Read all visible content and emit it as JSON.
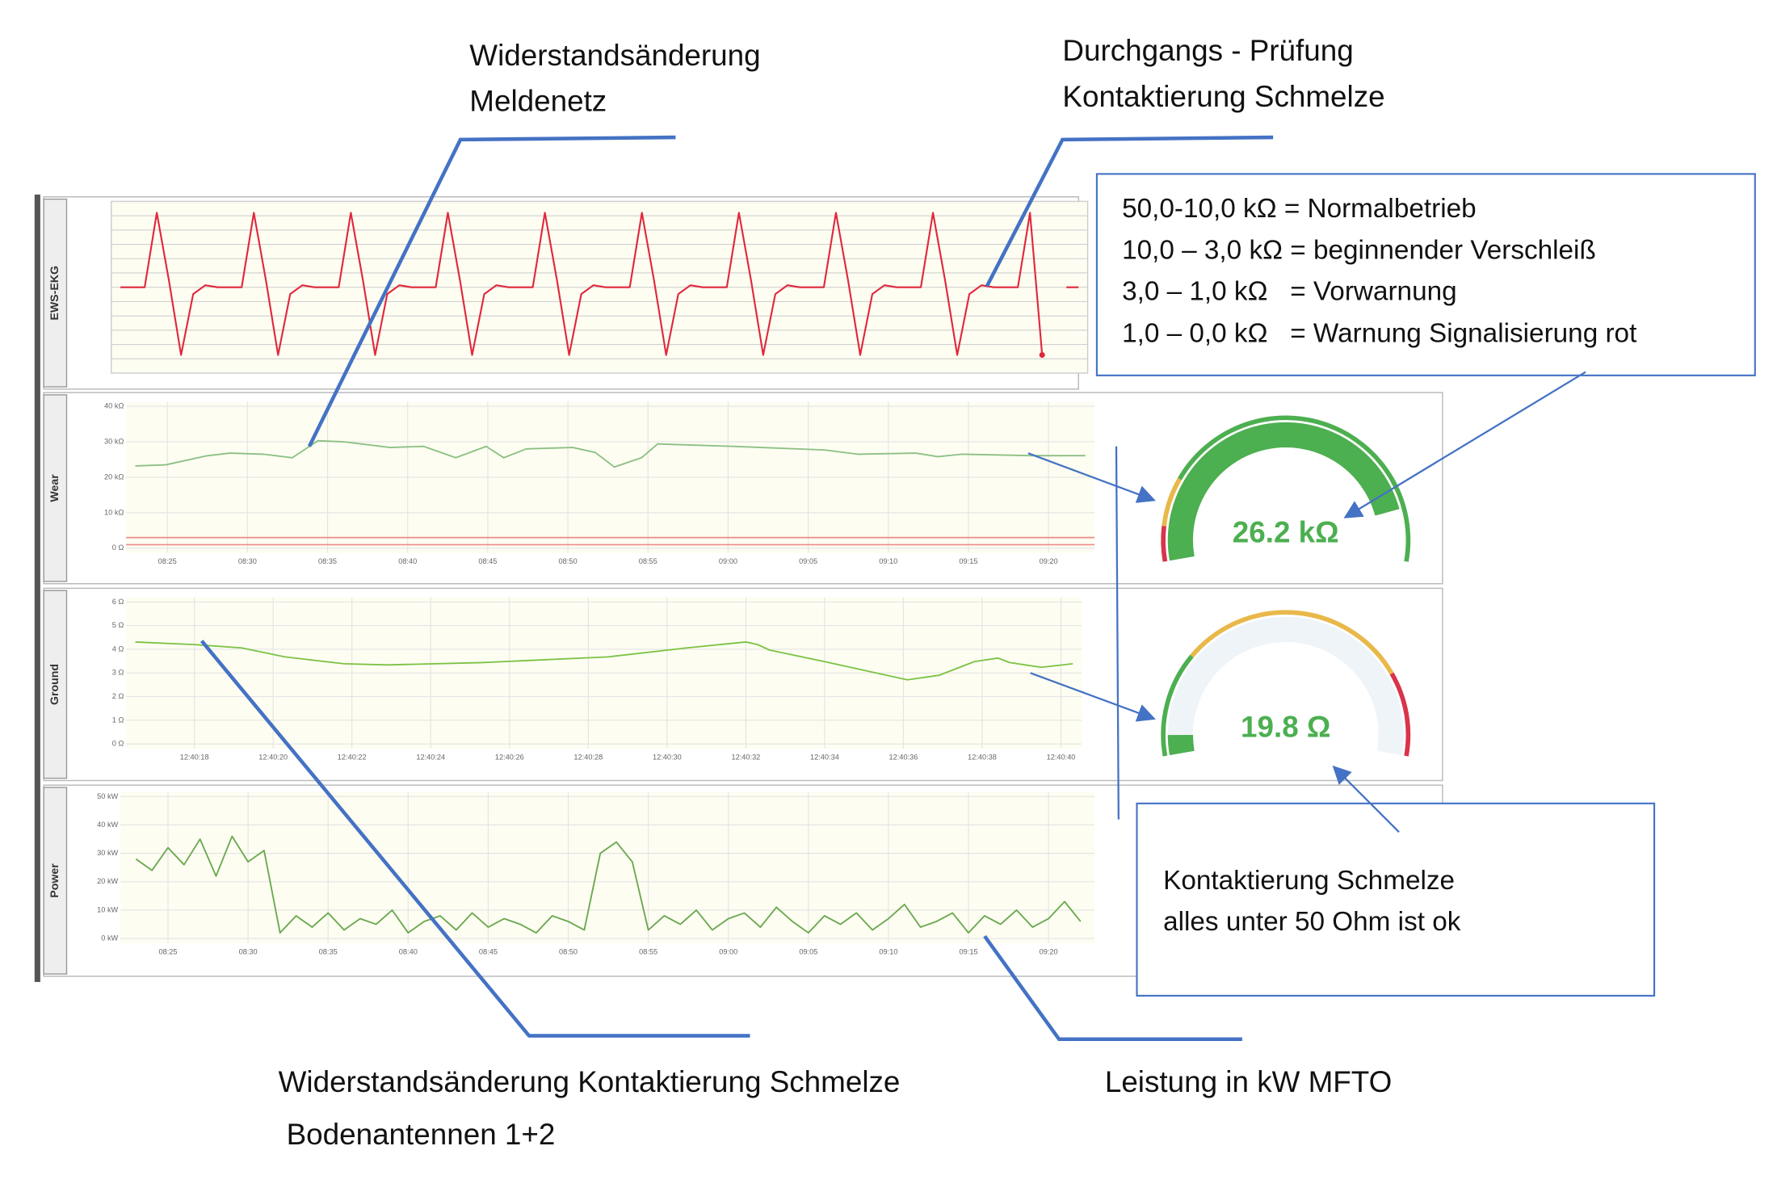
{
  "annotations": {
    "top_left": [
      "Widerstandsänderung",
      "Meldenetz"
    ],
    "top_right": [
      "Durchgangs - Prüfung",
      "Kontaktierung Schmelze"
    ],
    "legend": [
      "50,0-10,0 kΩ = Normalbetrieb",
      "10,0 – 3,0 kΩ = beginnender Verschleiß",
      "3,0 – 1,0 kΩ   = Vorwarnung",
      "1,0 – 0,0 kΩ   = Warnung Signalisierung rot"
    ],
    "info": [
      "Kontaktierung Schmelze",
      "alles unter 50 Ohm ist ok"
    ],
    "bottom_left": [
      "Widerstandsänderung Kontaktierung Schmelze",
      "Bodenantennen 1+2"
    ],
    "bottom_right": [
      "Leistung in kW MFTO"
    ]
  },
  "chart_data": [
    {
      "type": "line",
      "title": "EWS-EKG",
      "color": "#e0283c",
      "ylim": [
        -12,
        12
      ],
      "grid": true,
      "end_marker": true,
      "values": [
        0,
        0,
        0,
        11,
        1,
        -10,
        -1,
        0.3,
        0,
        0,
        0,
        11,
        1,
        -10,
        -1,
        0.3,
        0,
        0,
        0,
        11,
        1,
        -10,
        -1,
        0.3,
        0,
        0,
        0,
        11,
        1,
        -10,
        -1,
        0.3,
        0,
        0,
        0,
        11,
        1,
        -10,
        -1,
        0.3,
        0,
        0,
        0,
        11,
        1,
        -10,
        -1,
        0.3,
        0,
        0,
        0,
        11,
        1,
        -10,
        -1,
        0.3,
        0,
        0,
        0,
        11,
        1,
        -10,
        -1,
        0.3,
        0,
        0,
        0,
        11,
        1,
        -10,
        -1,
        0.3,
        0,
        0,
        0,
        11,
        -10,
        null,
        0,
        0
      ]
    },
    {
      "type": "line",
      "title": "Wear",
      "color": "#8cc084",
      "grid": true,
      "x": [
        503,
        504.9,
        507.4,
        508.9,
        511,
        512.8,
        514.4,
        516,
        518.9,
        521,
        523,
        524.9,
        526,
        527.4,
        530.3,
        531.7,
        532.9,
        534.6,
        535.6,
        540.3,
        546,
        548.1,
        551.7,
        553.1,
        554.6,
        558.9,
        562.3
      ],
      "values": [
        23.2,
        23.5,
        26,
        26.8,
        26.5,
        25.5,
        30.3,
        30,
        28.4,
        28.7,
        25.5,
        28.7,
        25.5,
        28,
        28.4,
        27,
        22.9,
        25.5,
        29.4,
        28.7,
        27.7,
        26.5,
        26.8,
        25.8,
        26.5,
        26.1,
        26.1
      ],
      "threshold_lines": [
        3,
        1
      ],
      "threshold_color": "#ef8a8a",
      "xlim": [
        503,
        562.3
      ],
      "ylim": [
        0,
        40
      ],
      "xticks": [
        {
          "value": 505,
          "label": "08:25"
        },
        {
          "value": 510,
          "label": "08:30"
        },
        {
          "value": 515,
          "label": "08:35"
        },
        {
          "value": 520,
          "label": "08:40"
        },
        {
          "value": 525,
          "label": "08:45"
        },
        {
          "value": 530,
          "label": "08:50"
        },
        {
          "value": 535,
          "label": "08:55"
        },
        {
          "value": 540,
          "label": "09:00"
        },
        {
          "value": 545,
          "label": "09:05"
        },
        {
          "value": 550,
          "label": "09:10"
        },
        {
          "value": 555,
          "label": "09:15"
        },
        {
          "value": 560,
          "label": "09:20"
        }
      ],
      "yticks": [
        {
          "value": 0,
          "label": "0 Ω"
        },
        {
          "value": 10,
          "label": "10 kΩ"
        },
        {
          "value": 20,
          "label": "20 kΩ"
        },
        {
          "value": 30,
          "label": "30 kΩ"
        },
        {
          "value": 40,
          "label": "40 kΩ"
        }
      ]
    },
    {
      "type": "line",
      "title": "Ground",
      "color": "#7cc243",
      "grid": true,
      "x": [
        16.5,
        18,
        19.2,
        20.3,
        21.8,
        22.9,
        25.3,
        28.5,
        30.5,
        32,
        32.3,
        32.6,
        34,
        36.1,
        36.9,
        37.8,
        38.4,
        38.7,
        39.5,
        40.3
      ],
      "values": [
        4.31,
        4.2,
        4.06,
        3.68,
        3.39,
        3.34,
        3.44,
        3.68,
        4.06,
        4.31,
        4.2,
        3.97,
        3.48,
        2.71,
        2.9,
        3.48,
        3.63,
        3.44,
        3.24,
        3.39
      ],
      "xlim": [
        16.5,
        40.3
      ],
      "ylim": [
        0,
        6
      ],
      "xticks": [
        {
          "value": 18,
          "label": "12:40:18"
        },
        {
          "value": 20,
          "label": "12:40:20"
        },
        {
          "value": 22,
          "label": "12:40:22"
        },
        {
          "value": 24,
          "label": "12:40:24"
        },
        {
          "value": 26,
          "label": "12:40:26"
        },
        {
          "value": 28,
          "label": "12:40:28"
        },
        {
          "value": 30,
          "label": "12:40:30"
        },
        {
          "value": 32,
          "label": "12:40:32"
        },
        {
          "value": 34,
          "label": "12:40:34"
        },
        {
          "value": 36,
          "label": "12:40:36"
        },
        {
          "value": 38,
          "label": "12:40:38"
        },
        {
          "value": 40,
          "label": "12:40:40"
        }
      ],
      "yticks": [
        {
          "value": 0,
          "label": "0 Ω"
        },
        {
          "value": 1,
          "label": "1 Ω"
        },
        {
          "value": 2,
          "label": "2 Ω"
        },
        {
          "value": 3,
          "label": "3 Ω"
        },
        {
          "value": 4,
          "label": "4 Ω"
        },
        {
          "value": 5,
          "label": "5 Ω"
        },
        {
          "value": 6,
          "label": "6 Ω"
        }
      ]
    },
    {
      "type": "line",
      "title": "Power",
      "color": "#6aa84f",
      "grid": true,
      "x": [
        503,
        504,
        505,
        506,
        507,
        508,
        509,
        510,
        511,
        512,
        513,
        514,
        515,
        516,
        517,
        518,
        519,
        520,
        521,
        522,
        523,
        524,
        525,
        526,
        527,
        528,
        529,
        530,
        531,
        532,
        533,
        534,
        535,
        536,
        537,
        538,
        539,
        540,
        541,
        542,
        543,
        544,
        545,
        546,
        547,
        548,
        549,
        550,
        551,
        552,
        553,
        554,
        555,
        556,
        557,
        558,
        559,
        560,
        561,
        562
      ],
      "values": [
        28,
        24,
        32,
        26,
        35,
        22,
        36,
        27,
        31,
        2,
        8,
        4,
        9,
        3,
        7,
        5,
        10,
        2,
        6,
        8,
        3,
        9,
        4,
        7,
        5,
        2,
        8,
        6,
        3,
        30,
        34,
        27,
        3,
        8,
        5,
        10,
        3,
        7,
        9,
        4,
        11,
        6,
        2,
        8,
        5,
        9,
        3,
        7,
        12,
        4,
        6,
        9,
        2,
        8,
        5,
        10,
        4,
        7,
        13,
        6
      ],
      "xlim": [
        502.6,
        562.3
      ],
      "ylim": [
        0,
        50
      ],
      "xticks": [
        {
          "value": 505,
          "label": "08:25"
        },
        {
          "value": 510,
          "label": "08:30"
        },
        {
          "value": 515,
          "label": "08:35"
        },
        {
          "value": 520,
          "label": "08:40"
        },
        {
          "value": 525,
          "label": "08:45"
        },
        {
          "value": 530,
          "label": "08:50"
        },
        {
          "value": 535,
          "label": "08:55"
        },
        {
          "value": 540,
          "label": "09:00"
        },
        {
          "value": 545,
          "label": "09:05"
        },
        {
          "value": 550,
          "label": "09:10"
        },
        {
          "value": 555,
          "label": "09:15"
        },
        {
          "value": 560,
          "label": "09:20"
        }
      ],
      "yticks": [
        {
          "value": 0,
          "label": "0 kW"
        },
        {
          "value": 10,
          "label": "10 kW"
        },
        {
          "value": 20,
          "label": "20 kW"
        },
        {
          "value": 30,
          "label": "30 kW"
        },
        {
          "value": 40,
          "label": "40 kW"
        },
        {
          "value": 50,
          "label": "50 kW"
        }
      ]
    },
    {
      "type": "gauge",
      "values": [
        26.2
      ],
      "value_labels": [
        "26.2 kΩ"
      ],
      "range": [
        0,
        30
      ],
      "color": "#4caf50",
      "track": "#ffffff",
      "bands": [
        {
          "to": 2.5,
          "color": "#d9344a"
        },
        {
          "to": 6,
          "color": "#e8b84a"
        },
        {
          "to": 30,
          "color": "#4caf50"
        }
      ]
    },
    {
      "type": "gauge",
      "values": [
        19.8
      ],
      "value_labels": [
        "19.8 Ω"
      ],
      "range": [
        0,
        400
      ],
      "color": "#4caf50",
      "track": "#eef4f8",
      "bands": [
        {
          "to": 100,
          "color": "#4caf50"
        },
        {
          "to": 320,
          "color": "#e8b84a"
        },
        {
          "to": 400,
          "color": "#d9344a"
        }
      ]
    }
  ]
}
